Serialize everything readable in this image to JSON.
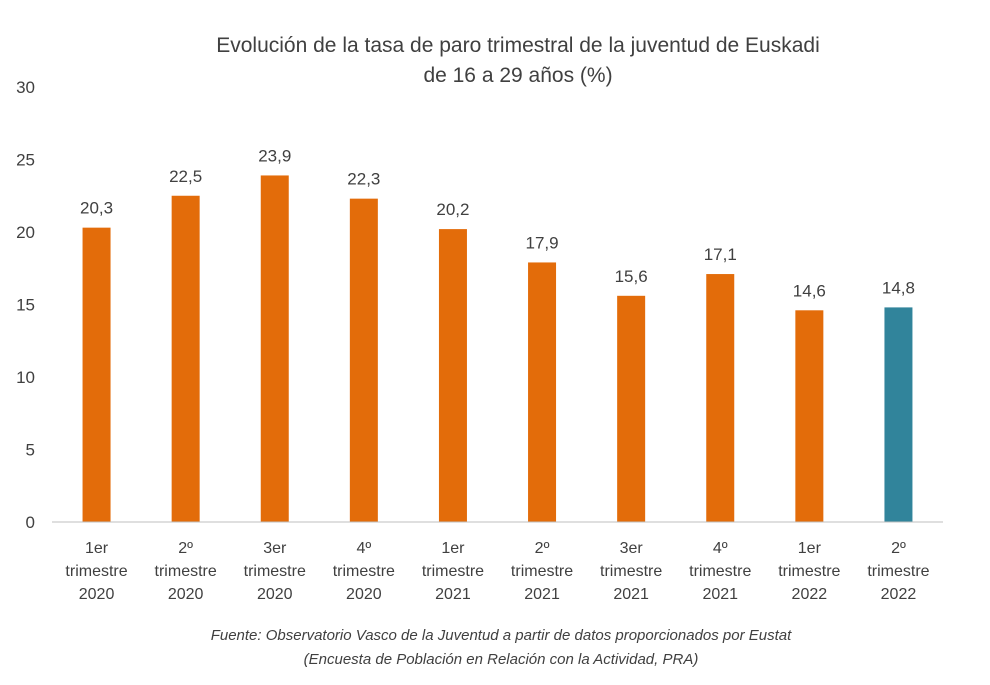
{
  "chart_data": {
    "type": "bar",
    "title_lines": [
      "Evolución de la tasa de paro trimestral de la juventud de Euskadi",
      "de 16 a 29 años (%)"
    ],
    "categories": [
      [
        "1er",
        "trimestre",
        "2020"
      ],
      [
        "2º",
        "trimestre",
        "2020"
      ],
      [
        "3er",
        "trimestre",
        "2020"
      ],
      [
        "4º",
        "trimestre",
        "2020"
      ],
      [
        "1er",
        "trimestre",
        "2021"
      ],
      [
        "2º",
        "trimestre",
        "2021"
      ],
      [
        "3er",
        "trimestre",
        "2021"
      ],
      [
        "4º",
        "trimestre",
        "2021"
      ],
      [
        "1er",
        "trimestre",
        "2022"
      ],
      [
        "2º",
        "trimestre",
        "2022"
      ]
    ],
    "values": [
      20.3,
      22.5,
      23.9,
      22.3,
      20.2,
      17.9,
      15.6,
      17.1,
      14.6,
      14.8
    ],
    "data_labels": [
      "20,3",
      "22,5",
      "23,9",
      "22,3",
      "20,2",
      "17,9",
      "15,6",
      "17,1",
      "14,6",
      "14,8"
    ],
    "yticks": [
      "0",
      "5",
      "10",
      "15",
      "20",
      "25",
      "30"
    ],
    "ylim": [
      0,
      30
    ],
    "grid": false,
    "colors": {
      "default_bar": "#E36C0A",
      "highlight_bar": "#31849B",
      "axis": "#BFBFBF"
    },
    "highlight_index": 9,
    "source_lines": [
      "Fuente: Observatorio Vasco de la Juventud a partir de datos proporcionados por Eustat",
      "(Encuesta de Población en Relación con la Actividad, PRA)"
    ]
  }
}
